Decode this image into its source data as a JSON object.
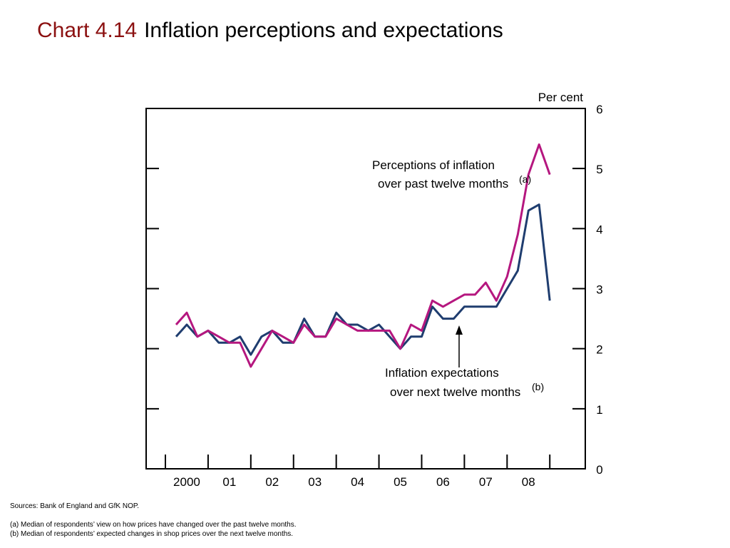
{
  "title": {
    "label": "Chart 4.14",
    "text": "Inflation perceptions and expectations"
  },
  "colors": {
    "perceptions": "#b5177f",
    "expectations": "#1f3d6f",
    "title_label": "#8b1010",
    "axis": "#000000"
  },
  "chart_data": {
    "type": "line",
    "y_unit_label": "Per cent",
    "ylim": [
      0,
      6
    ],
    "y_ticks": [
      "0",
      "1",
      "2",
      "3",
      "4",
      "5",
      "6"
    ],
    "x_range": [
      1999.5,
      2008.83
    ],
    "x_tick_labels": [
      "2000",
      "01",
      "02",
      "03",
      "04",
      "05",
      "06",
      "07",
      "08"
    ],
    "x_tick_positions": [
      1999.5,
      2000.5,
      2001.5,
      2002.5,
      2003.5,
      2004.5,
      2005.5,
      2006.5,
      2007.5,
      2008.5
    ],
    "grid": false,
    "x": [
      1999.75,
      2000.0,
      2000.25,
      2000.5,
      2000.75,
      2001.0,
      2001.25,
      2001.5,
      2001.75,
      2002.0,
      2002.25,
      2002.5,
      2002.75,
      2003.0,
      2003.25,
      2003.5,
      2003.75,
      2004.0,
      2004.25,
      2004.5,
      2004.75,
      2005.0,
      2005.25,
      2005.5,
      2005.75,
      2006.0,
      2006.25,
      2006.5,
      2006.75,
      2007.0,
      2007.25,
      2007.5,
      2007.75,
      2008.0,
      2008.25,
      2008.5
    ],
    "series": [
      {
        "key": "perceptions",
        "label_line1": "Perceptions of inflation",
        "label_line2": "over past twelve months",
        "footnote_marker": "(a)",
        "values": [
          2.4,
          2.6,
          2.2,
          2.3,
          2.2,
          2.1,
          2.1,
          1.7,
          2.0,
          2.3,
          2.2,
          2.1,
          2.4,
          2.2,
          2.2,
          2.5,
          2.4,
          2.3,
          2.3,
          2.3,
          2.3,
          2.0,
          2.4,
          2.3,
          2.8,
          2.7,
          2.8,
          2.9,
          2.9,
          3.1,
          2.8,
          3.2,
          3.9,
          4.9,
          5.4,
          4.9
        ]
      },
      {
        "key": "expectations",
        "label_line1": "Inflation expectations",
        "label_line2": "over next twelve months",
        "footnote_marker": "(b)",
        "values": [
          2.2,
          2.4,
          2.2,
          2.3,
          2.1,
          2.1,
          2.2,
          1.9,
          2.2,
          2.3,
          2.1,
          2.1,
          2.5,
          2.2,
          2.2,
          2.6,
          2.4,
          2.4,
          2.3,
          2.4,
          2.2,
          2.0,
          2.2,
          2.2,
          2.7,
          2.5,
          2.5,
          2.7,
          2.7,
          2.7,
          2.7,
          3.0,
          3.3,
          4.3,
          4.4,
          2.8
        ]
      }
    ]
  },
  "footnotes": {
    "sources": "Sources:  Bank of England and GfK NOP.",
    "note_a": "(a)  Median of respondents’ view on how prices have changed over the past twelve months.",
    "note_b": "(b)  Median of respondents’ expected changes in shop prices over the next twelve months."
  }
}
